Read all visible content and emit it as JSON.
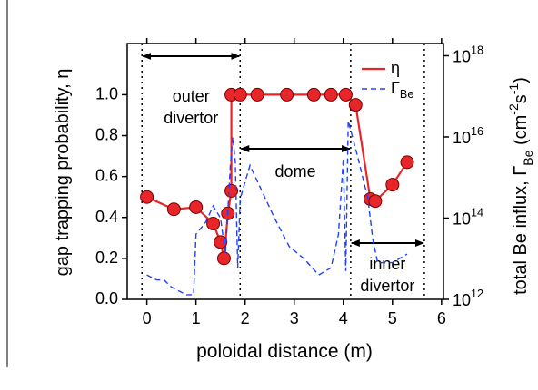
{
  "chart_data": {
    "type": "line",
    "xlabel": "poloidal distance (m)",
    "ylabel": "gap trapping probability, η",
    "y2label": "total Be influx, Γ_{Be} (cm^{-2}s^{-1})",
    "xlim": [
      -0.4,
      6.04
    ],
    "xticks": [
      0,
      1,
      2,
      3,
      4,
      5,
      6
    ],
    "ylim": [
      0,
      1.25
    ],
    "yticks": [
      {
        "value": 0,
        "label": "0.0"
      },
      0.2,
      0.4,
      0.6,
      0.8,
      {
        "value": 1,
        "label": "1.0"
      }
    ],
    "y2lim": [
      1000000000000.0,
      2e+18
    ],
    "y2scale": "log",
    "y2ticks": [
      {
        "value": 1000000000000.0,
        "label": "10^{12}"
      },
      {
        "value": 100000000000000.0,
        "label": "10^{14}"
      },
      {
        "value": 1e+16,
        "label": "10^{16}"
      },
      {
        "value": 1e+18,
        "label": "10^{18}"
      }
    ],
    "series": [
      {
        "name": "η",
        "color": "#e8262a",
        "marker": true,
        "x": [
          0,
          0.55,
          1.0,
          1.35,
          1.5,
          1.57,
          1.65,
          1.72,
          1.72,
          1.9,
          2.25,
          2.85,
          3.4,
          3.75,
          4.05,
          4.25,
          4.55,
          4.65,
          5.0,
          5.3
        ],
        "values": [
          0.5,
          0.44,
          0.45,
          0.37,
          0.28,
          0.2,
          0.42,
          0.53,
          1.0,
          1.0,
          1.0,
          1.0,
          1.0,
          1.0,
          1.0,
          0.95,
          0.49,
          0.48,
          0.56,
          0.67
        ]
      },
      {
        "name": "Γ_{Be}",
        "color": "#2040ff",
        "axis": "y2",
        "dash": true,
        "x": [
          0,
          0.2,
          0.35,
          0.5,
          0.8,
          0.95,
          1.0,
          1.2,
          1.35,
          1.5,
          1.6,
          1.7,
          1.75,
          1.8,
          1.85,
          1.9,
          2.1,
          2.3,
          2.6,
          2.9,
          3.2,
          3.5,
          3.75,
          3.9,
          4.0,
          4.05,
          4.1,
          4.3,
          4.5,
          4.6,
          4.7,
          5.0,
          5.3
        ],
        "values": [
          4000000000000.0,
          3000000000000.0,
          3000000000000.0,
          2000000000000.0,
          1300000000000.0,
          1300000000000.0,
          40000000000000.0,
          80000000000000.0,
          200000000000000.0,
          100000000000000.0,
          13000000000000.0,
          2000000000000000.0,
          1e+16,
          2500000000000000.0,
          6000000000000.0,
          300000000000000.0,
          2000000000000000.0,
          600000000000000.0,
          100000000000000.0,
          20000000000000.0,
          10000000000000.0,
          4000000000000.0,
          6000000000000.0,
          40000000000000.0,
          3000000000000000.0,
          5000000000000.0,
          2.5e+16,
          3000000000000000.0,
          300000000000000.0,
          30000000000000.0,
          8000000000000.0,
          8000000000000.0,
          13000000000000.0
        ]
      }
    ],
    "boundaries": [
      -0.1,
      1.9,
      4.15,
      5.65
    ],
    "annotations": [
      {
        "lines": [
          "outer",
          "divertor"
        ]
      },
      {
        "lines": [
          "dome"
        ]
      },
      {
        "lines": [
          "inner",
          "divertor"
        ]
      }
    ],
    "legend": "upper right",
    "grid": false
  }
}
